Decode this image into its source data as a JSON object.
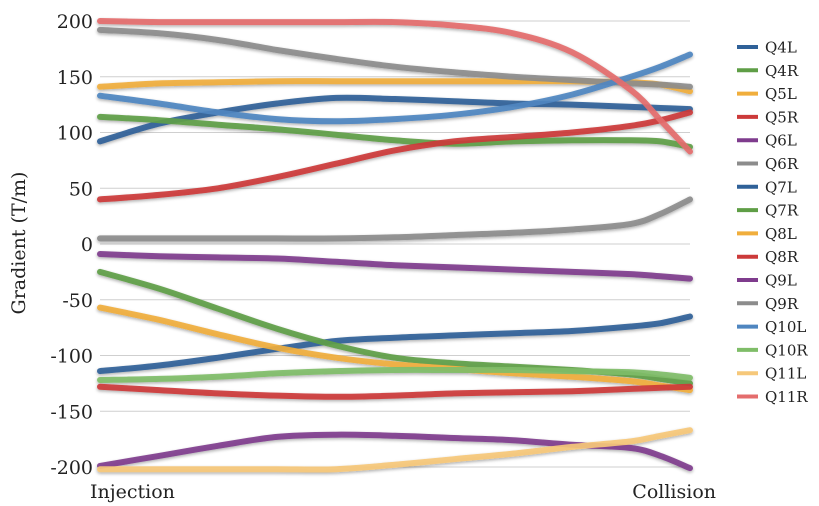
{
  "chart_data": {
    "type": "line",
    "title": "",
    "xlabel": "",
    "ylabel": "Gradient (T/m)",
    "x_tick_labels": [
      "Injection",
      "Collision"
    ],
    "xlim": [
      0,
      1
    ],
    "ylim": [
      -205,
      205
    ],
    "yticks": [
      200,
      150,
      100,
      50,
      0,
      -50,
      -100,
      -150,
      -200
    ],
    "ytick_labels": [
      "200",
      "150",
      "100",
      "50",
      "0",
      "-50",
      "-100",
      "-150",
      "-200"
    ],
    "grid": "horizontal",
    "legend": "right",
    "x": [
      0,
      0.1,
      0.2,
      0.3,
      0.4,
      0.5,
      0.6,
      0.7,
      0.8,
      0.9,
      0.95,
      1.0
    ],
    "series": [
      {
        "name": "Q4L",
        "color": "#2f6198",
        "values": [
          92,
          108,
          118,
          126,
          131,
          130,
          128,
          126,
          125,
          123,
          122,
          121
        ]
      },
      {
        "name": "Q4R",
        "color": "#5f9e46",
        "values": [
          114,
          111,
          107,
          103,
          98,
          93,
          90,
          92,
          93,
          93,
          92,
          87
        ]
      },
      {
        "name": "Q5L",
        "color": "#f0ae3c",
        "values": [
          141,
          144,
          145,
          146,
          146,
          146,
          146,
          146,
          146,
          145,
          143,
          137
        ]
      },
      {
        "name": "Q5R",
        "color": "#cc3a3a",
        "values": [
          40,
          44,
          50,
          60,
          72,
          84,
          92,
          96,
          100,
          106,
          111,
          118
        ]
      },
      {
        "name": "Q6L",
        "color": "#7f3c8d",
        "values": [
          -9,
          -11,
          -12,
          -13,
          -16,
          -19,
          -21,
          -23,
          -25,
          -27,
          -29,
          -31
        ]
      },
      {
        "name": "Q6R",
        "color": "#8c8c8c",
        "values": [
          5,
          5,
          5,
          5,
          5,
          6,
          8,
          10,
          13,
          18,
          27,
          40
        ]
      },
      {
        "name": "Q7L",
        "color": "#2f6198",
        "values": [
          -114,
          -109,
          -102,
          -94,
          -87,
          -84,
          -82,
          -80,
          -78,
          -74,
          -71,
          -65
        ]
      },
      {
        "name": "Q7R",
        "color": "#5f9e46",
        "values": [
          -25,
          -40,
          -58,
          -76,
          -91,
          -102,
          -107,
          -110,
          -113,
          -117,
          -121,
          -125
        ]
      },
      {
        "name": "Q8L",
        "color": "#f0ae3c",
        "values": [
          -57,
          -68,
          -81,
          -93,
          -102,
          -108,
          -112,
          -116,
          -119,
          -123,
          -127,
          -131
        ]
      },
      {
        "name": "Q8R",
        "color": "#cc3a3a",
        "values": [
          -128,
          -131,
          -134,
          -136,
          -137,
          -136,
          -134,
          -133,
          -132,
          -130,
          -129,
          -128
        ]
      },
      {
        "name": "Q9L",
        "color": "#7f3c8d",
        "values": [
          -199,
          -190,
          -181,
          -173,
          -171,
          -172,
          -174,
          -176,
          -180,
          -183,
          -190,
          -201
        ]
      },
      {
        "name": "Q9R",
        "color": "#8c8c8c",
        "values": [
          192,
          189,
          183,
          174,
          166,
          159,
          154,
          150,
          147,
          144,
          143,
          141
        ]
      },
      {
        "name": "Q10L",
        "color": "#4f86c0",
        "values": [
          133,
          126,
          118,
          112,
          110,
          112,
          116,
          123,
          134,
          150,
          159,
          170
        ]
      },
      {
        "name": "Q10R",
        "color": "#7fbd68",
        "values": [
          -122,
          -121,
          -119,
          -116,
          -114,
          -113,
          -113,
          -113,
          -114,
          -115,
          -117,
          -120
        ]
      },
      {
        "name": "Q11L",
        "color": "#f6c87a",
        "values": [
          -202,
          -202,
          -202,
          -202,
          -202,
          -198,
          -193,
          -188,
          -182,
          -177,
          -172,
          -167
        ]
      },
      {
        "name": "Q11R",
        "color": "#e46d6d",
        "values": [
          200,
          199,
          199,
          199,
          199,
          199,
          196,
          189,
          172,
          138,
          111,
          83
        ]
      }
    ]
  }
}
